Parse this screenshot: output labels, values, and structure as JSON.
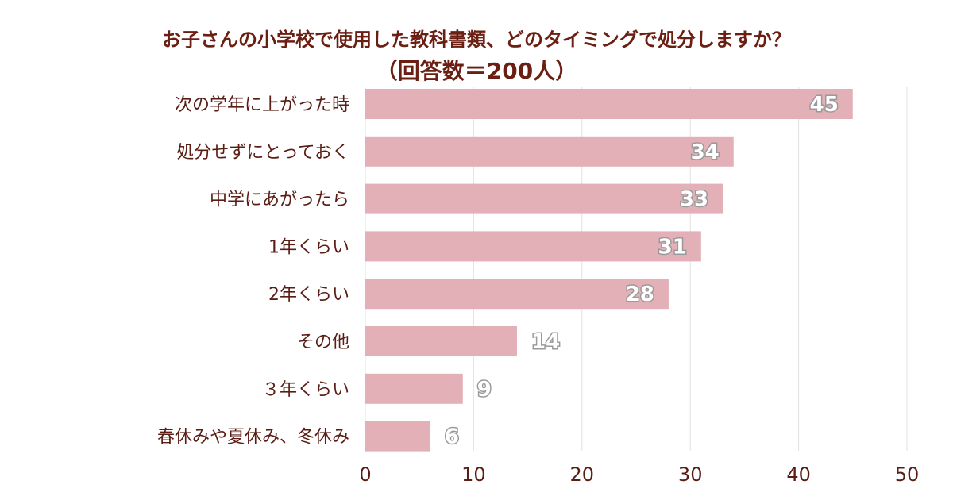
{
  "chart_data": {
    "type": "bar",
    "orientation": "horizontal",
    "title": [
      "お子さんの小学校で使用した教科書類、どのタイミングで処分しますか？",
      "（回答数＝200人）"
    ],
    "categories": [
      "次の学年に上がった時",
      "処分せずにとっておく",
      "中学にあがったら",
      "1年くらい",
      "2年くらい",
      "その他",
      "３年くらい",
      "春休みや夏休み、冬休み"
    ],
    "values": [
      45,
      34,
      33,
      31,
      28,
      14,
      9,
      6
    ],
    "xlim": [
      0,
      50
    ],
    "xticks": [
      0,
      10,
      20,
      30,
      40,
      50
    ],
    "bar_color": "#e3b0b8",
    "grid": true,
    "legend": "none"
  }
}
